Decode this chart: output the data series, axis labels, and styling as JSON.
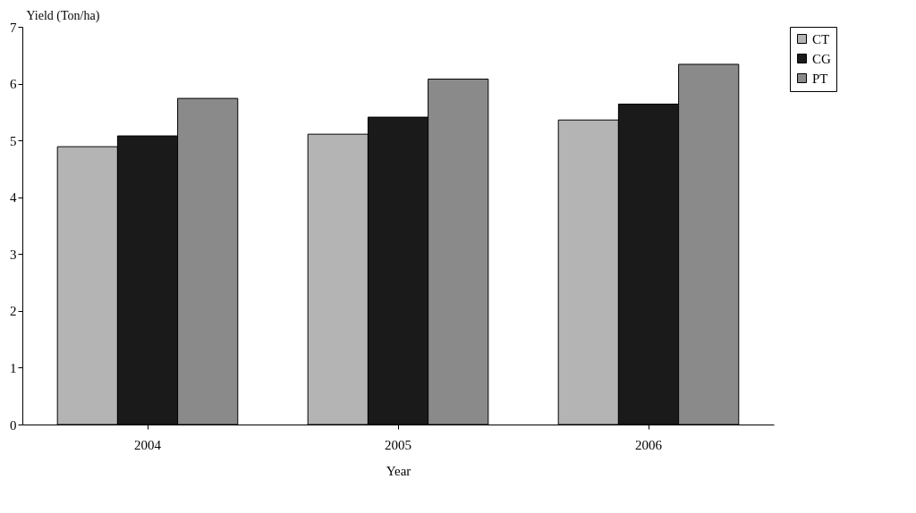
{
  "chart_data": {
    "type": "bar",
    "xlabel": "Year",
    "ylabel": "Yield (Ton/ha)",
    "categories": [
      "2004",
      "2005",
      "2006"
    ],
    "series": [
      {
        "name": "CT",
        "color": "#b4b4b4",
        "values": [
          4.89,
          5.11,
          5.36
        ]
      },
      {
        "name": "CG",
        "color": "#1a1a1a",
        "values": [
          5.08,
          5.41,
          5.64
        ]
      },
      {
        "name": "PT",
        "color": "#8a8a8a",
        "values": [
          5.74,
          6.08,
          6.34
        ]
      }
    ],
    "ylim": [
      0,
      7
    ],
    "yticks": [
      0,
      1,
      2,
      3,
      4,
      5,
      6,
      7
    ],
    "grid": false,
    "legend": "right"
  }
}
